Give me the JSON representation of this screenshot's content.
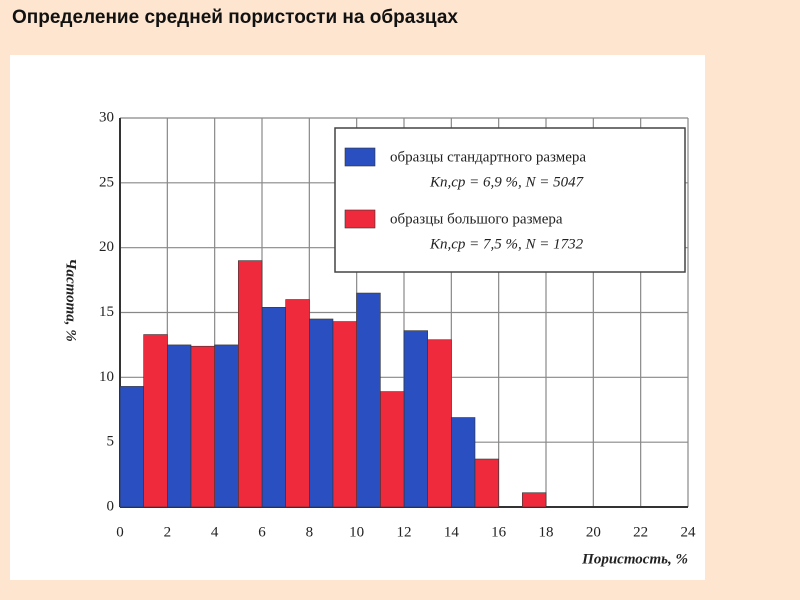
{
  "slide_title": "Определение средней пористости на образцах",
  "chart_data": {
    "type": "histogram",
    "x_label": "Пористость, %",
    "y_label": "Частота, %",
    "bins": [
      0,
      2,
      4,
      6,
      8,
      10,
      12,
      14,
      16,
      18
    ],
    "series": [
      {
        "name": "образцы стандартного размера",
        "legend_detail": "Kп,ср = 6,9 %,   N = 5047",
        "color": "#2a4fc0",
        "values": [
          9.3,
          12.5,
          12.5,
          15.4,
          14.5,
          16.5,
          13.6,
          6.9,
          0
        ]
      },
      {
        "name": "образцы большого размера",
        "legend_detail": "Kп,ср = 7,5 %,   N = 1732",
        "color": "#ee2a3c",
        "values": [
          13.3,
          12.4,
          19.0,
          16.0,
          14.3,
          8.9,
          12.9,
          3.7,
          1.1
        ]
      }
    ],
    "xlim": [
      0,
      24
    ],
    "xticks": [
      0,
      2,
      4,
      6,
      8,
      10,
      12,
      14,
      16,
      18,
      20,
      22,
      24
    ],
    "ylim": [
      0,
      30
    ],
    "yticks": [
      0,
      5,
      10,
      15,
      20,
      25,
      30
    ],
    "grid": true
  }
}
